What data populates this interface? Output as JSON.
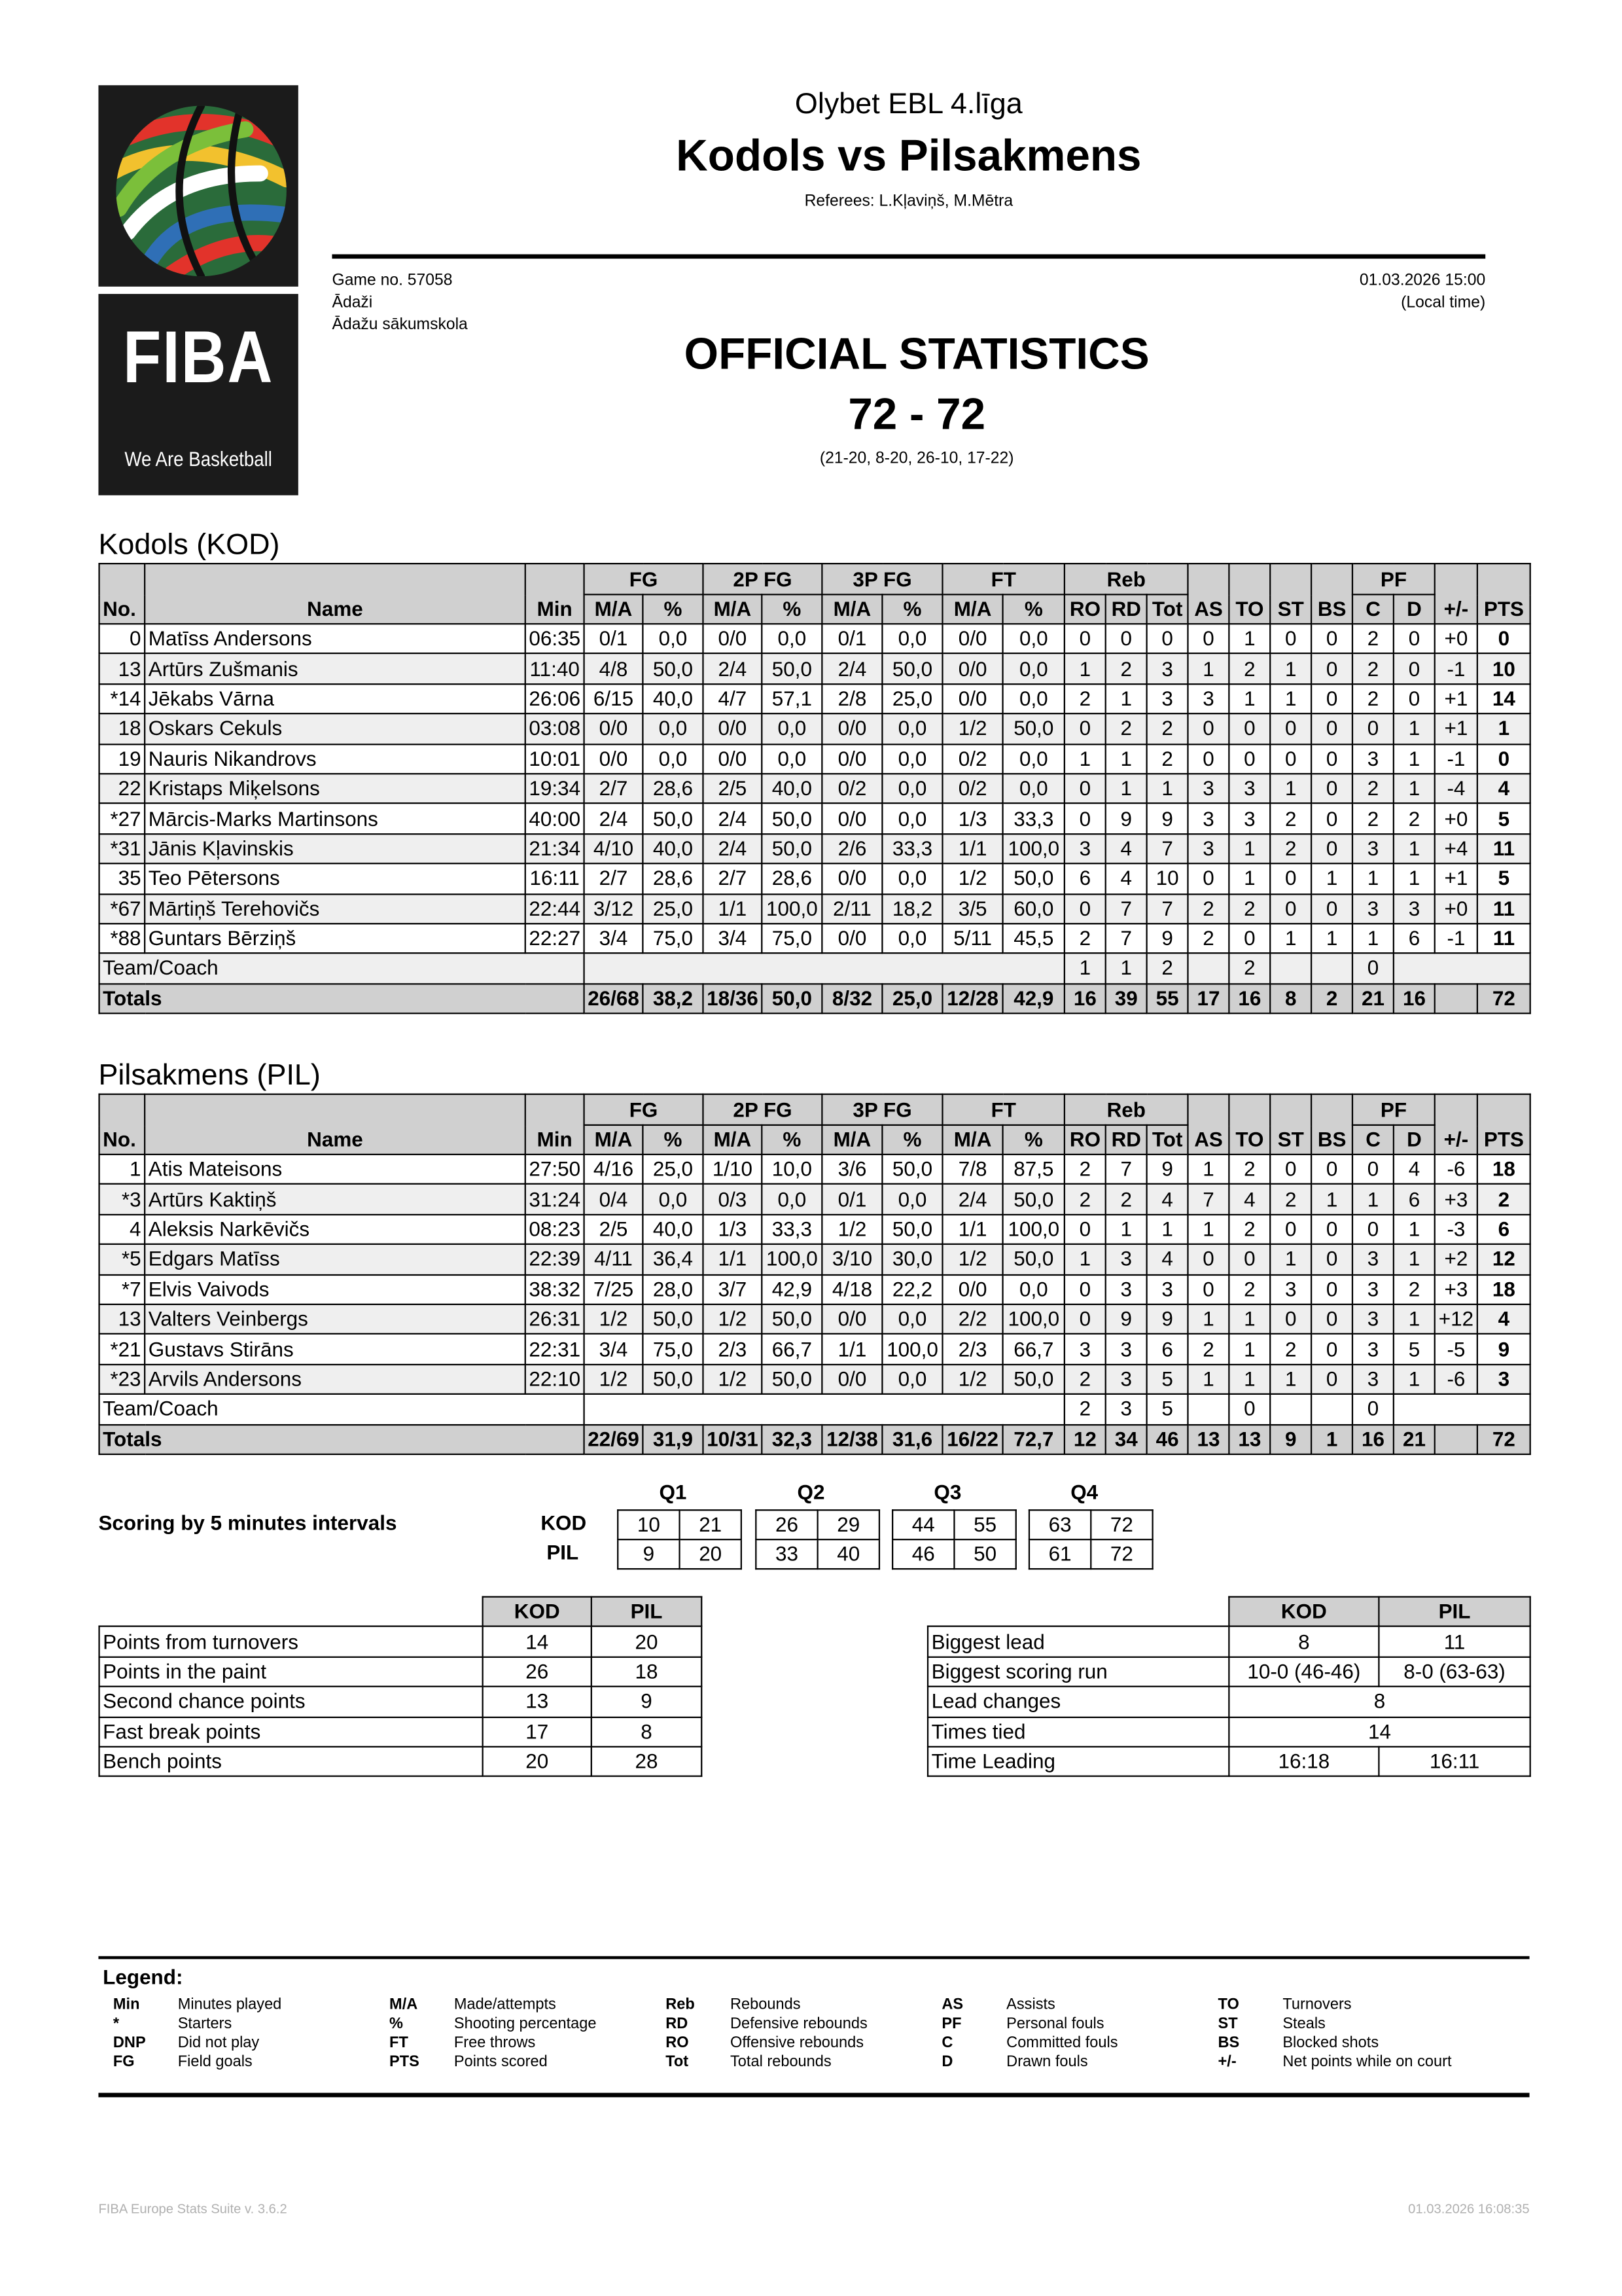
{
  "logo": {
    "wordmark": "FIBA",
    "tagline": "We Are Basketball"
  },
  "header": {
    "competition": "Olybet EBL 4.līga",
    "matchup": "Kodols vs Pilsakmens",
    "referees": "Referees: L.Kļaviņš, M.Mētra",
    "game_no": "Game no. 57058",
    "city": "Ādaži",
    "venue": "Ādažu sākumskola",
    "datetime": "01.03.2026 15:00",
    "time_note": "(Local time)",
    "doc_title": "OFFICIAL STATISTICS",
    "final_score": "72 - 72",
    "period_scores": "(21-20, 8-20, 26-10, 17-22)"
  },
  "columns": {
    "no": "No.",
    "name": "Name",
    "min": "Min",
    "groups": [
      "FG",
      "2P FG",
      "3P FG",
      "FT",
      "Reb",
      "PF"
    ],
    "ma": "M/A",
    "pct": "%",
    "reb": [
      "RO",
      "RD",
      "Tot"
    ],
    "as": "AS",
    "to": "TO",
    "st": "ST",
    "bs": "BS",
    "pf": [
      "C",
      "D"
    ],
    "pm": "+/-",
    "pts": "PTS"
  },
  "teams": [
    {
      "title": "Kodols (KOD)",
      "players": [
        [
          "0",
          "Matīss Andersons",
          "06:35",
          "0/1",
          "0,0",
          "0/0",
          "0,0",
          "0/1",
          "0,0",
          "0/0",
          "0,0",
          "0",
          "0",
          "0",
          "0",
          "1",
          "0",
          "0",
          "2",
          "0",
          "+0",
          "0"
        ],
        [
          "13",
          "Artūrs Zušmanis",
          "11:40",
          "4/8",
          "50,0",
          "2/4",
          "50,0",
          "2/4",
          "50,0",
          "0/0",
          "0,0",
          "1",
          "2",
          "3",
          "1",
          "2",
          "1",
          "0",
          "2",
          "0",
          "-1",
          "10"
        ],
        [
          "*14",
          "Jēkabs Vārna",
          "26:06",
          "6/15",
          "40,0",
          "4/7",
          "57,1",
          "2/8",
          "25,0",
          "0/0",
          "0,0",
          "2",
          "1",
          "3",
          "3",
          "1",
          "1",
          "0",
          "2",
          "0",
          "+1",
          "14"
        ],
        [
          "18",
          "Oskars Cekuls",
          "03:08",
          "0/0",
          "0,0",
          "0/0",
          "0,0",
          "0/0",
          "0,0",
          "1/2",
          "50,0",
          "0",
          "2",
          "2",
          "0",
          "0",
          "0",
          "0",
          "0",
          "1",
          "+1",
          "1"
        ],
        [
          "19",
          "Nauris Nikandrovs",
          "10:01",
          "0/0",
          "0,0",
          "0/0",
          "0,0",
          "0/0",
          "0,0",
          "0/2",
          "0,0",
          "1",
          "1",
          "2",
          "0",
          "0",
          "0",
          "0",
          "3",
          "1",
          "-1",
          "0"
        ],
        [
          "22",
          "Kristaps Miķelsons",
          "19:34",
          "2/7",
          "28,6",
          "2/5",
          "40,0",
          "0/2",
          "0,0",
          "0/2",
          "0,0",
          "0",
          "1",
          "1",
          "3",
          "3",
          "1",
          "0",
          "2",
          "1",
          "-4",
          "4"
        ],
        [
          "*27",
          "Mārcis-Marks Martinsons",
          "40:00",
          "2/4",
          "50,0",
          "2/4",
          "50,0",
          "0/0",
          "0,0",
          "1/3",
          "33,3",
          "0",
          "9",
          "9",
          "3",
          "3",
          "2",
          "0",
          "2",
          "2",
          "+0",
          "5"
        ],
        [
          "*31",
          "Jānis Kļavinskis",
          "21:34",
          "4/10",
          "40,0",
          "2/4",
          "50,0",
          "2/6",
          "33,3",
          "1/1",
          "100,0",
          "3",
          "4",
          "7",
          "3",
          "1",
          "2",
          "0",
          "3",
          "1",
          "+4",
          "11"
        ],
        [
          "35",
          "Teo Pētersons",
          "16:11",
          "2/7",
          "28,6",
          "2/7",
          "28,6",
          "0/0",
          "0,0",
          "1/2",
          "50,0",
          "6",
          "4",
          "10",
          "0",
          "1",
          "0",
          "1",
          "1",
          "1",
          "+1",
          "5"
        ],
        [
          "*67",
          "Mārtiņš Terehovičs",
          "22:44",
          "3/12",
          "25,0",
          "1/1",
          "100,0",
          "2/11",
          "18,2",
          "3/5",
          "60,0",
          "0",
          "7",
          "7",
          "2",
          "2",
          "0",
          "0",
          "3",
          "3",
          "+0",
          "11"
        ],
        [
          "*88",
          "Guntars Bērziņš",
          "22:27",
          "3/4",
          "75,0",
          "3/4",
          "75,0",
          "0/0",
          "0,0",
          "5/11",
          "45,5",
          "2",
          "7",
          "9",
          "2",
          "0",
          "1",
          "1",
          "1",
          "6",
          "-1",
          "11"
        ]
      ],
      "team_coach": {
        "label": "Team/Coach",
        "ro": "1",
        "rd": "1",
        "tot": "2",
        "to": "2",
        "c": "0"
      },
      "totals": {
        "label": "Totals",
        "values": [
          "26/68",
          "38,2",
          "18/36",
          "50,0",
          "8/32",
          "25,0",
          "12/28",
          "42,9",
          "16",
          "39",
          "55",
          "17",
          "16",
          "8",
          "2",
          "21",
          "16",
          "",
          "72"
        ]
      }
    },
    {
      "title": "Pilsakmens (PIL)",
      "players": [
        [
          "1",
          "Atis Mateisons",
          "27:50",
          "4/16",
          "25,0",
          "1/10",
          "10,0",
          "3/6",
          "50,0",
          "7/8",
          "87,5",
          "2",
          "7",
          "9",
          "1",
          "2",
          "0",
          "0",
          "0",
          "4",
          "-6",
          "18"
        ],
        [
          "*3",
          "Artūrs Kaktiņš",
          "31:24",
          "0/4",
          "0,0",
          "0/3",
          "0,0",
          "0/1",
          "0,0",
          "2/4",
          "50,0",
          "2",
          "2",
          "4",
          "7",
          "4",
          "2",
          "1",
          "1",
          "6",
          "+3",
          "2"
        ],
        [
          "4",
          "Aleksis Narkēvičs",
          "08:23",
          "2/5",
          "40,0",
          "1/3",
          "33,3",
          "1/2",
          "50,0",
          "1/1",
          "100,0",
          "0",
          "1",
          "1",
          "1",
          "2",
          "0",
          "0",
          "0",
          "1",
          "-3",
          "6"
        ],
        [
          "*5",
          "Edgars Matīss",
          "22:39",
          "4/11",
          "36,4",
          "1/1",
          "100,0",
          "3/10",
          "30,0",
          "1/2",
          "50,0",
          "1",
          "3",
          "4",
          "0",
          "0",
          "1",
          "0",
          "3",
          "1",
          "+2",
          "12"
        ],
        [
          "*7",
          "Elvis Vaivods",
          "38:32",
          "7/25",
          "28,0",
          "3/7",
          "42,9",
          "4/18",
          "22,2",
          "0/0",
          "0,0",
          "0",
          "3",
          "3",
          "0",
          "2",
          "3",
          "0",
          "3",
          "2",
          "+3",
          "18"
        ],
        [
          "13",
          "Valters Veinbergs",
          "26:31",
          "1/2",
          "50,0",
          "1/2",
          "50,0",
          "0/0",
          "0,0",
          "2/2",
          "100,0",
          "0",
          "9",
          "9",
          "1",
          "1",
          "0",
          "0",
          "3",
          "1",
          "+12",
          "4"
        ],
        [
          "*21",
          "Gustavs Stirāns",
          "22:31",
          "3/4",
          "75,0",
          "2/3",
          "66,7",
          "1/1",
          "100,0",
          "2/3",
          "66,7",
          "3",
          "3",
          "6",
          "2",
          "1",
          "2",
          "0",
          "3",
          "5",
          "-5",
          "9"
        ],
        [
          "*23",
          "Arvils Andersons",
          "22:10",
          "1/2",
          "50,0",
          "1/2",
          "50,0",
          "0/0",
          "0,0",
          "1/2",
          "50,0",
          "2",
          "3",
          "5",
          "1",
          "1",
          "1",
          "0",
          "3",
          "1",
          "-6",
          "3"
        ]
      ],
      "team_coach": {
        "label": "Team/Coach",
        "ro": "2",
        "rd": "3",
        "tot": "5",
        "to": "0",
        "c": "0"
      },
      "totals": {
        "label": "Totals",
        "values": [
          "22/69",
          "31,9",
          "10/31",
          "32,3",
          "12/38",
          "31,6",
          "16/22",
          "72,7",
          "12",
          "34",
          "46",
          "13",
          "13",
          "9",
          "1",
          "16",
          "21",
          "",
          "72"
        ]
      }
    }
  ],
  "scoring": {
    "title": "Scoring by 5 minutes intervals",
    "quarters": [
      "Q1",
      "Q2",
      "Q3",
      "Q4"
    ],
    "teams": [
      "KOD",
      "PIL"
    ],
    "kod": [
      [
        "10",
        "21"
      ],
      [
        "26",
        "29"
      ],
      [
        "44",
        "55"
      ],
      [
        "63",
        "72"
      ]
    ],
    "pil": [
      [
        "9",
        "20"
      ],
      [
        "33",
        "40"
      ],
      [
        "46",
        "50"
      ],
      [
        "61",
        "72"
      ]
    ]
  },
  "points_table": {
    "headers": [
      "KOD",
      "PIL"
    ],
    "rows": [
      [
        "Points from turnovers",
        "14",
        "20"
      ],
      [
        "Points in the paint",
        "26",
        "18"
      ],
      [
        "Second chance points",
        "13",
        "9"
      ],
      [
        "Fast break points",
        "17",
        "8"
      ],
      [
        "Bench points",
        "20",
        "28"
      ]
    ]
  },
  "game_table": {
    "headers": [
      "KOD",
      "PIL"
    ],
    "rows": [
      [
        "Biggest lead",
        "8",
        "11"
      ],
      [
        "Biggest scoring run",
        "10-0 (46-46)",
        "8-0 (63-63)"
      ],
      [
        "Lead changes",
        "8"
      ],
      [
        "Times tied",
        "14"
      ],
      [
        "Time Leading",
        "16:18",
        "16:11"
      ]
    ]
  },
  "legend": {
    "title": "Legend:",
    "columns": [
      [
        [
          "Min",
          "Minutes played"
        ],
        [
          "*",
          "Starters"
        ],
        [
          "DNP",
          "Did not play"
        ],
        [
          "FG",
          "Field goals"
        ]
      ],
      [
        [
          "M/A",
          "Made/attempts"
        ],
        [
          "%",
          "Shooting percentage"
        ],
        [
          "FT",
          "Free throws"
        ],
        [
          "PTS",
          "Points scored"
        ]
      ],
      [
        [
          "Reb",
          "Rebounds"
        ],
        [
          "RD",
          "Defensive rebounds"
        ],
        [
          "RO",
          "Offensive rebounds"
        ],
        [
          "Tot",
          "Total rebounds"
        ]
      ],
      [
        [
          "AS",
          "Assists"
        ],
        [
          "PF",
          "Personal fouls"
        ],
        [
          "C",
          "Committed fouls"
        ],
        [
          "D",
          "Drawn fouls"
        ]
      ],
      [
        [
          "TO",
          "Turnovers"
        ],
        [
          "ST",
          "Steals"
        ],
        [
          "BS",
          "Blocked shots"
        ],
        [
          "+/-",
          "Net points while on court"
        ]
      ]
    ]
  },
  "footer": {
    "software": "FIBA Europe Stats Suite v. 3.6.2",
    "printed": "01.03.2026 16:08:35"
  },
  "colors": {
    "header_gray": "#d0d0d0",
    "row_alt": "#efefef",
    "footer_text": "#b0b0b0"
  }
}
